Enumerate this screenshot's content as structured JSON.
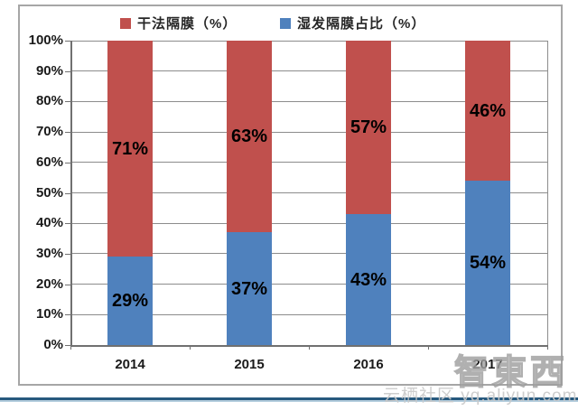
{
  "chart_data": {
    "type": "bar",
    "stacked": true,
    "title": "",
    "categories": [
      "2014",
      "2015",
      "2016",
      "2017"
    ],
    "series": [
      {
        "name": "湿发隔膜占比（%）",
        "color": "#4F81BD",
        "values": [
          29,
          37,
          43,
          54
        ]
      },
      {
        "name": "干法隔膜（%）",
        "color": "#C0504D",
        "values": [
          71,
          63,
          57,
          46
        ]
      }
    ],
    "legend": [
      {
        "label": "干法隔膜（%）",
        "color": "#C0504D"
      },
      {
        "label": "湿发隔膜占比（%）",
        "color": "#4F81BD"
      }
    ],
    "legend_position": "top",
    "grid": true,
    "ylim": [
      0,
      100
    ],
    "yticks": [
      "0%",
      "10%",
      "20%",
      "30%",
      "40%",
      "50%",
      "60%",
      "70%",
      "80%",
      "90%",
      "100%"
    ],
    "value_suffix": "%"
  },
  "watermarks": {
    "site": "云栖社区 yq.aliyun.com",
    "logo": "智東西"
  }
}
